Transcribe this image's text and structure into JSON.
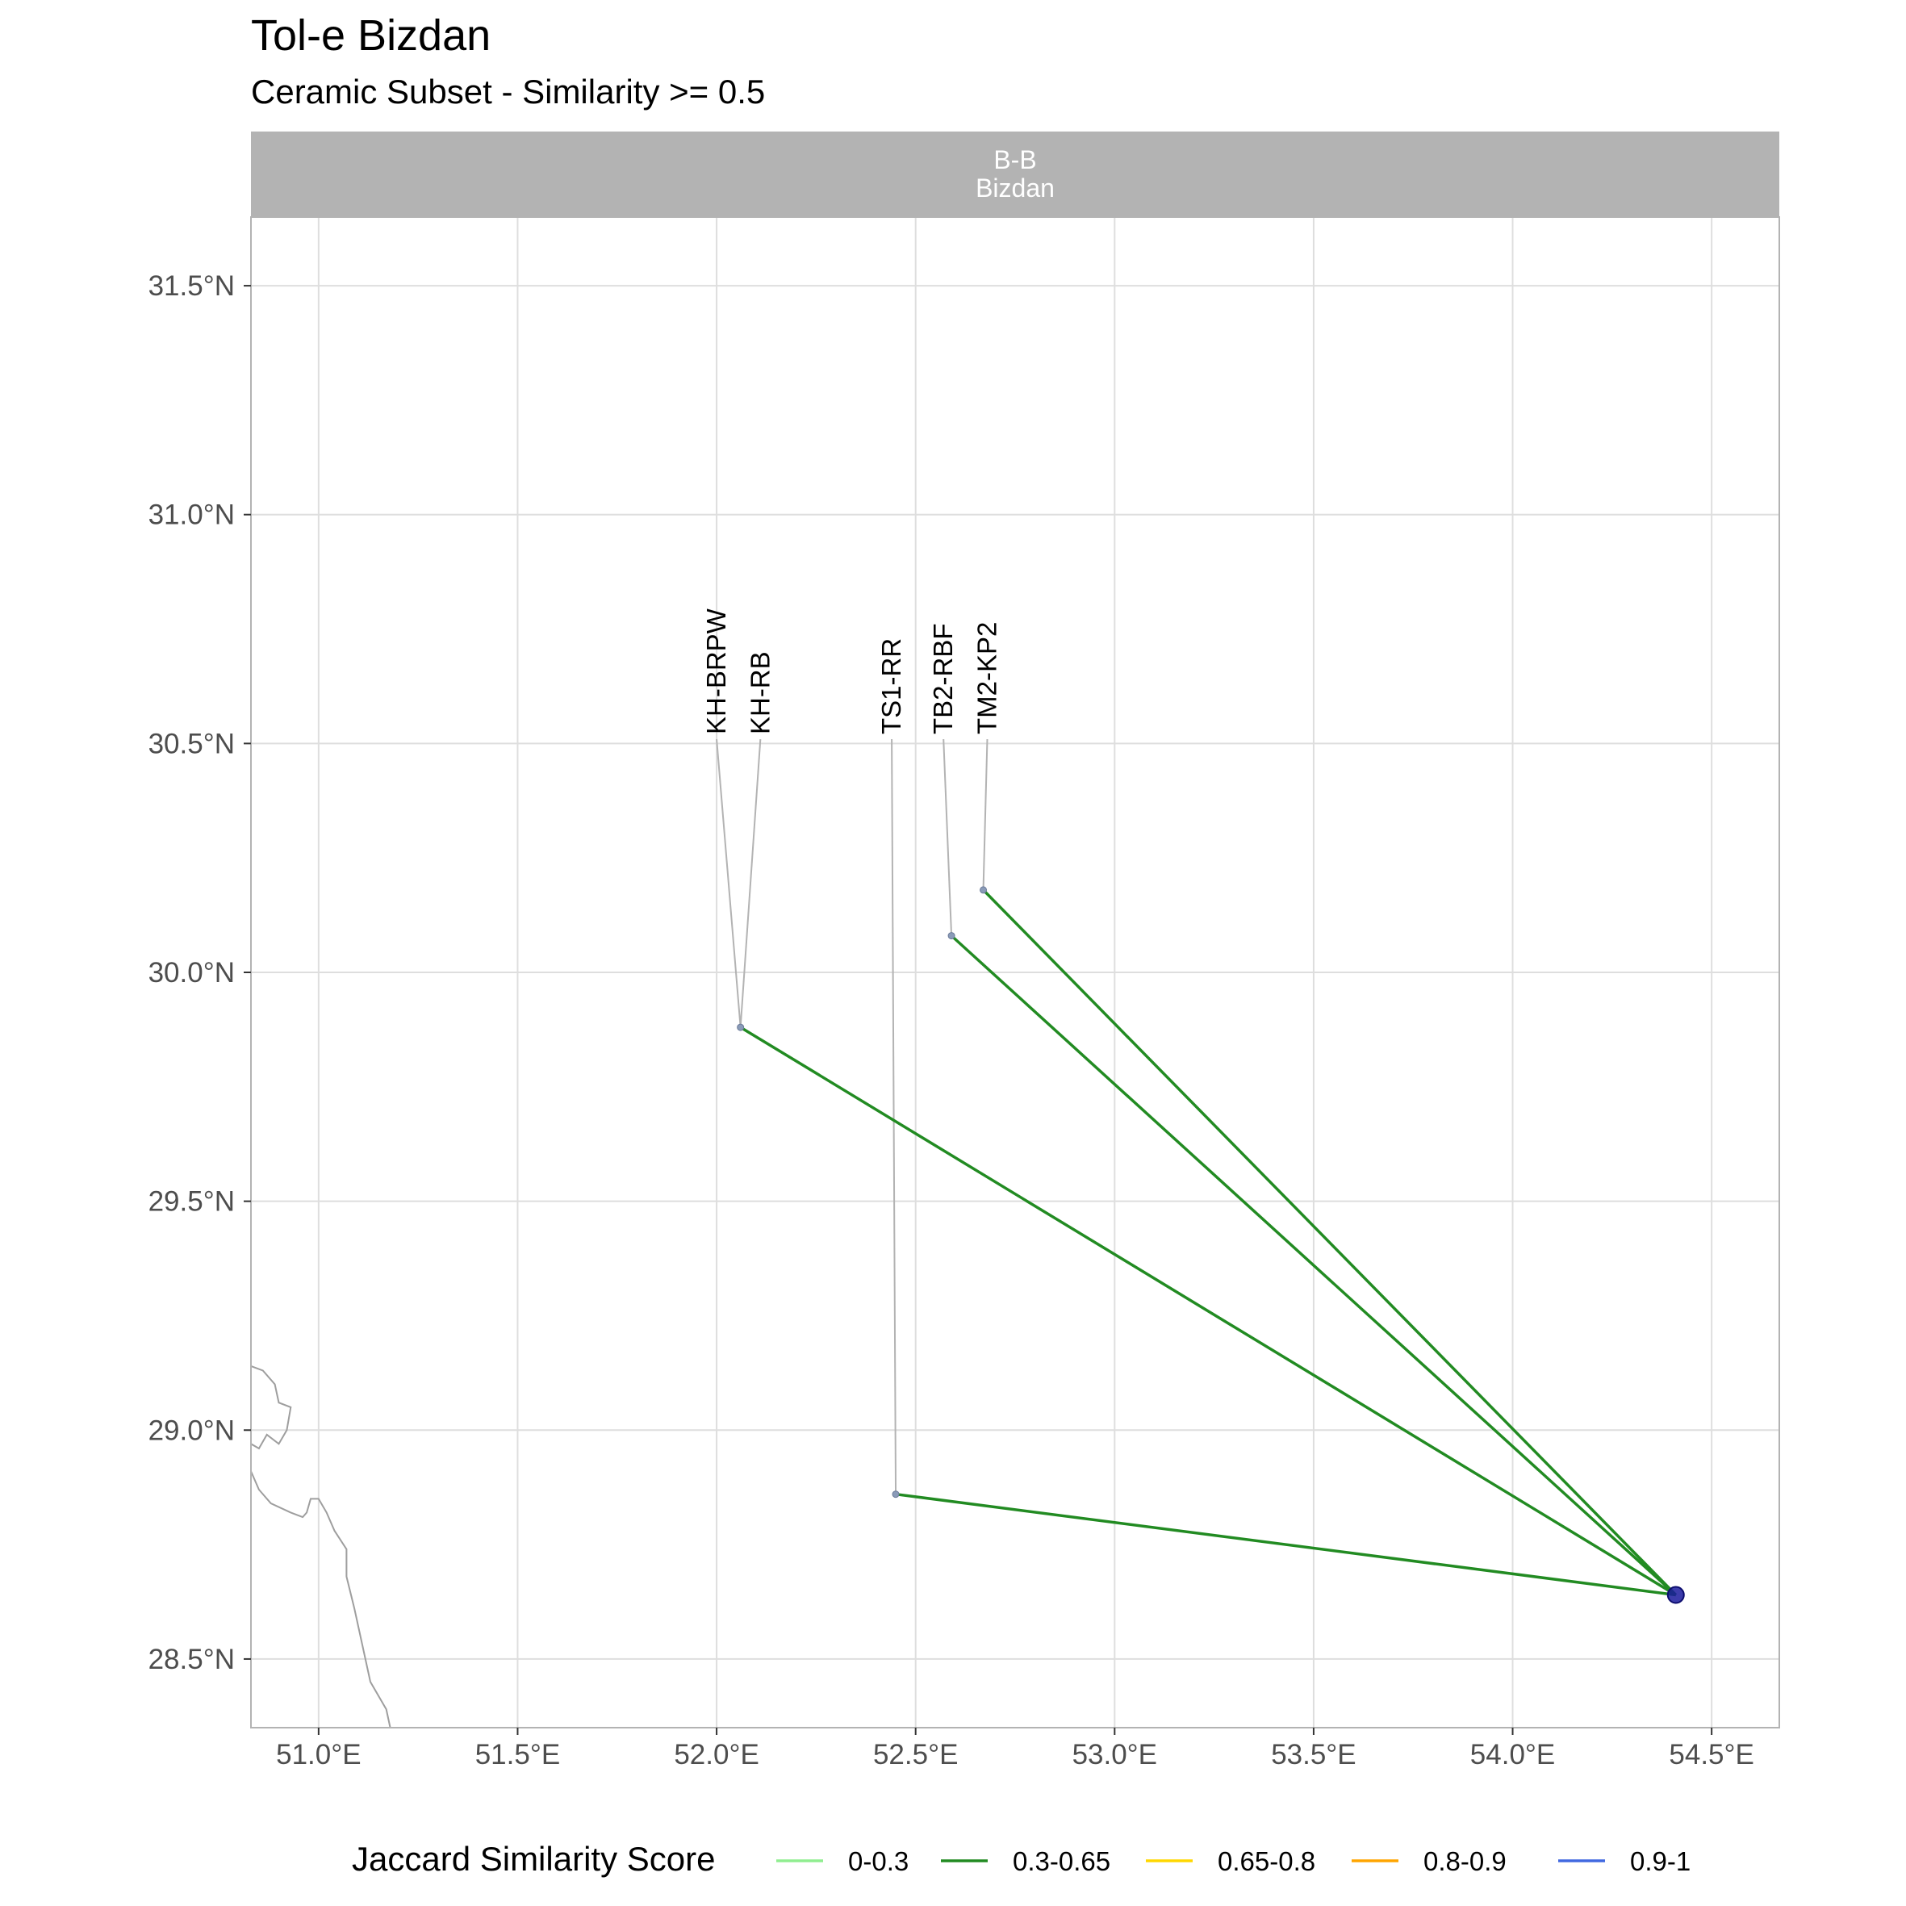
{
  "title": "Tol-e Bizdan",
  "subtitle": "Ceramic Subset - Similarity >= 0.5",
  "facet": {
    "line1": "B-B",
    "line2": "Bizdan"
  },
  "chart_data": {
    "type": "map",
    "x_range": [
      50.83,
      54.67
    ],
    "y_range": [
      28.35,
      31.65
    ],
    "x_ticks": [
      {
        "value": 51.0,
        "label": "51.0°E"
      },
      {
        "value": 51.5,
        "label": "51.5°E"
      },
      {
        "value": 52.0,
        "label": "52.0°E"
      },
      {
        "value": 52.5,
        "label": "52.5°E"
      },
      {
        "value": 53.0,
        "label": "53.0°E"
      },
      {
        "value": 53.5,
        "label": "53.5°E"
      },
      {
        "value": 54.0,
        "label": "54.0°E"
      },
      {
        "value": 54.5,
        "label": "54.5°E"
      }
    ],
    "y_ticks": [
      {
        "value": 28.5,
        "label": "28.5°N"
      },
      {
        "value": 29.0,
        "label": "29.0°N"
      },
      {
        "value": 29.5,
        "label": "29.5°N"
      },
      {
        "value": 30.0,
        "label": "30.0°N"
      },
      {
        "value": 30.5,
        "label": "30.5°N"
      },
      {
        "value": 31.0,
        "label": "31.0°N"
      },
      {
        "value": 31.5,
        "label": "31.5°N"
      }
    ],
    "grid": true,
    "focal_site": {
      "lon": 54.41,
      "lat": 28.64,
      "color": "#1a1a9c"
    },
    "sites": [
      {
        "name": "KH-BRPW",
        "lon": 52.06,
        "lat": 29.88,
        "label_lon": 52.0,
        "class": "0.3-0.65"
      },
      {
        "name": "KH-RB",
        "lon": 52.06,
        "lat": 29.88,
        "label_lon": 52.11,
        "class": "0.3-0.65"
      },
      {
        "name": "TS1-RR",
        "lon": 52.45,
        "lat": 28.86,
        "label_lon": 52.44,
        "class": "0.3-0.65"
      },
      {
        "name": "TB2-RBF",
        "lon": 52.59,
        "lat": 30.08,
        "label_lon": 52.57,
        "class": "0.3-0.65"
      },
      {
        "name": "TM2-KP2",
        "lon": 52.67,
        "lat": 30.18,
        "label_lon": 52.68,
        "class": "0.3-0.65"
      }
    ],
    "label_lat": 30.52,
    "links": [
      {
        "from": [
          52.06,
          29.88
        ],
        "to": [
          54.41,
          28.64
        ],
        "class": "0.3-0.65"
      },
      {
        "from": [
          52.45,
          28.86
        ],
        "to": [
          54.41,
          28.64
        ],
        "class": "0.3-0.65"
      },
      {
        "from": [
          52.59,
          30.08
        ],
        "to": [
          54.41,
          28.64
        ],
        "class": "0.3-0.65"
      },
      {
        "from": [
          52.67,
          30.18
        ],
        "to": [
          54.41,
          28.64
        ],
        "class": "0.3-0.65"
      }
    ],
    "coastline": [
      [
        [
          50.83,
          29.14
        ],
        [
          50.86,
          29.13
        ],
        [
          50.89,
          29.1
        ],
        [
          50.9,
          29.06
        ],
        [
          50.93,
          29.05
        ],
        [
          50.92,
          29.0
        ],
        [
          50.9,
          28.97
        ],
        [
          50.87,
          28.99
        ],
        [
          50.85,
          28.96
        ],
        [
          50.83,
          28.97
        ]
      ],
      [
        [
          50.83,
          28.91
        ],
        [
          50.85,
          28.87
        ],
        [
          50.88,
          28.84
        ],
        [
          50.93,
          28.82
        ],
        [
          50.96,
          28.81
        ],
        [
          50.97,
          28.82
        ],
        [
          50.98,
          28.85
        ],
        [
          51.0,
          28.85
        ],
        [
          51.02,
          28.82
        ],
        [
          51.04,
          28.78
        ],
        [
          51.07,
          28.74
        ],
        [
          51.07,
          28.68
        ],
        [
          51.09,
          28.61
        ],
        [
          51.11,
          28.53
        ],
        [
          51.13,
          28.45
        ],
        [
          51.17,
          28.39
        ],
        [
          51.18,
          28.35
        ]
      ]
    ],
    "legend": {
      "title": "Jaccard Similarity Score",
      "items": [
        {
          "label": "0-0.3",
          "color": "#90ee90"
        },
        {
          "label": "0.3-0.65",
          "color": "#228b22"
        },
        {
          "label": "0.65-0.8",
          "color": "#ffd700"
        },
        {
          "label": "0.8-0.9",
          "color": "#ffa500"
        },
        {
          "label": "0.9-1",
          "color": "#4169e1"
        }
      ],
      "position": "bottom"
    }
  }
}
